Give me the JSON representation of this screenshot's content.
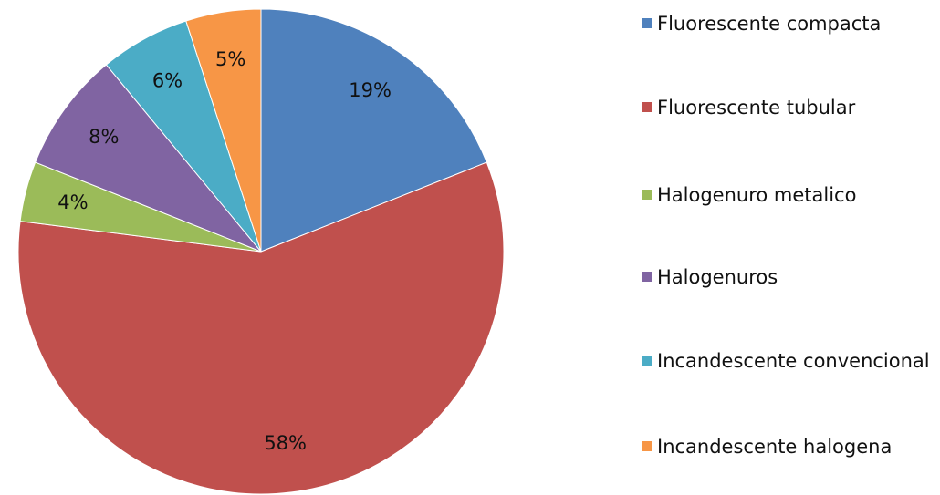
{
  "chart_data": {
    "type": "pie",
    "categories": [
      "Fluorescente compacta",
      "Fluorescente tubular",
      "Halogenuro metalico",
      "Halogenuros",
      "Incandescente convencional",
      "Incandescente halogena"
    ],
    "values": [
      19,
      58,
      4,
      8,
      6,
      5
    ],
    "value_labels": [
      "19%",
      "58%",
      "4%",
      "8%",
      "6%",
      "5%"
    ],
    "colors": [
      "#4f81bd",
      "#c0504d",
      "#9bbb59",
      "#8064a2",
      "#4bacc6",
      "#f79646"
    ],
    "legend": "right"
  }
}
